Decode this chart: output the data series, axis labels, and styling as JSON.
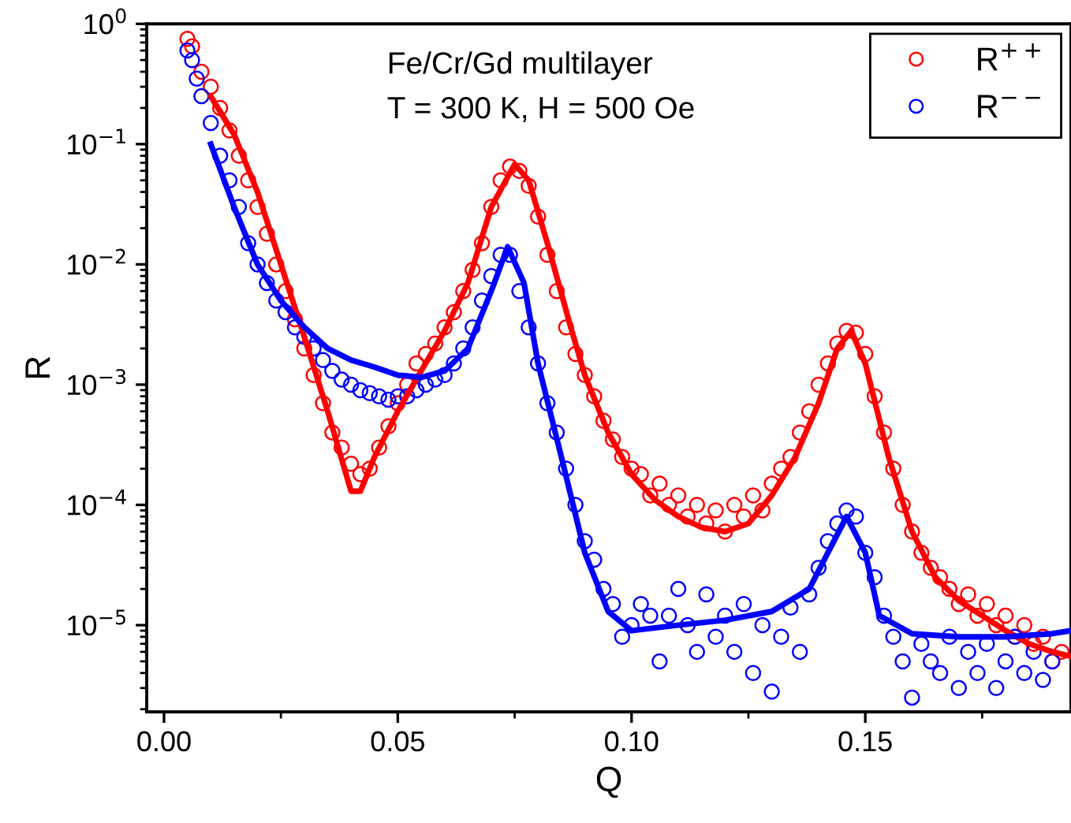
{
  "chart_data": {
    "type": "scatter",
    "xlabel": "Q",
    "ylabel": "R",
    "log": "y",
    "grid": false,
    "legend": "top right",
    "annotations": [
      "Fe/Cr/Gd multilayer",
      "T = 300 K, H = 500 Oe"
    ],
    "xlim": [
      -0.0037,
      0.194
    ],
    "xticks": [
      {
        "value": 0,
        "label": "0.00"
      },
      {
        "value": 0.05,
        "label": "0.05"
      },
      {
        "value": 0.1,
        "label": "0.10"
      },
      {
        "value": 0.15,
        "label": "0.15"
      }
    ],
    "ylim": [
      1.9e-06,
      1
    ],
    "yticks": [
      {
        "value": 1,
        "label": "10$^{0}$"
      },
      {
        "value": 0.1,
        "label": "10$^{−1}$"
      },
      {
        "value": 0.01,
        "label": "10$^{−2}$"
      },
      {
        "value": 0.001,
        "label": "10$^{−3}$"
      },
      {
        "value": 0.0001,
        "label": "10$^{−4}$"
      },
      {
        "value": 1e-05,
        "label": "10$^{−5}$"
      }
    ],
    "series": [
      {
        "name": "R$^{++}$",
        "marker": "circle",
        "color": "#ff0000",
        "x": [
          0.005,
          0.006,
          0.008,
          0.01,
          0.012,
          0.014,
          0.016,
          0.018,
          0.02,
          0.022,
          0.024,
          0.026,
          0.028,
          0.03,
          0.032,
          0.034,
          0.036,
          0.038,
          0.04,
          0.042,
          0.044,
          0.046,
          0.048,
          0.05,
          0.052,
          0.054,
          0.056,
          0.058,
          0.06,
          0.062,
          0.064,
          0.066,
          0.068,
          0.07,
          0.072,
          0.074,
          0.076,
          0.078,
          0.08,
          0.082,
          0.084,
          0.086,
          0.088,
          0.09,
          0.092,
          0.094,
          0.096,
          0.098,
          0.1,
          0.102,
          0.104,
          0.106,
          0.108,
          0.11,
          0.112,
          0.114,
          0.116,
          0.118,
          0.12,
          0.122,
          0.124,
          0.126,
          0.128,
          0.13,
          0.132,
          0.134,
          0.136,
          0.138,
          0.14,
          0.142,
          0.144,
          0.146,
          0.148,
          0.15,
          0.152,
          0.154,
          0.156,
          0.158,
          0.16,
          0.162,
          0.164,
          0.166,
          0.168,
          0.17,
          0.172,
          0.174,
          0.176,
          0.178,
          0.18,
          0.182,
          0.184,
          0.186,
          0.188,
          0.19,
          0.192
        ],
        "values": [
          0.75,
          0.65,
          0.4,
          0.3,
          0.2,
          0.13,
          0.08,
          0.05,
          0.03,
          0.018,
          0.01,
          0.006,
          0.0035,
          0.002,
          0.0012,
          0.0007,
          0.0004,
          0.0003,
          0.00022,
          0.00018,
          0.0002,
          0.0003,
          0.00045,
          0.0007,
          0.001,
          0.0015,
          0.0018,
          0.0022,
          0.003,
          0.004,
          0.006,
          0.009,
          0.015,
          0.03,
          0.05,
          0.065,
          0.06,
          0.045,
          0.025,
          0.012,
          0.006,
          0.003,
          0.0018,
          0.0012,
          0.0008,
          0.0005,
          0.00035,
          0.00025,
          0.0002,
          0.00018,
          0.00012,
          0.00015,
          0.0001,
          0.00012,
          8e-05,
          0.0001,
          7e-05,
          9e-05,
          6e-05,
          0.0001,
          8e-05,
          0.00012,
          9e-05,
          0.00015,
          0.0002,
          0.00025,
          0.0004,
          0.0006,
          0.001,
          0.0015,
          0.0022,
          0.0028,
          0.0027,
          0.0018,
          0.0008,
          0.0004,
          0.0002,
          0.0001,
          6e-05,
          4e-05,
          3e-05,
          2.5e-05,
          2e-05,
          1.5e-05,
          1.8e-05,
          1.2e-05,
          1.5e-05,
          1e-05,
          1.2e-05,
          8e-06,
          1e-05,
          7e-06,
          8e-06,
          5e-06,
          6e-06
        ]
      },
      {
        "name": "R$^{−−}$",
        "marker": "circle",
        "color": "#0000ff",
        "x": [
          0.005,
          0.006,
          0.007,
          0.008,
          0.01,
          0.012,
          0.014,
          0.016,
          0.018,
          0.02,
          0.022,
          0.024,
          0.026,
          0.028,
          0.03,
          0.032,
          0.034,
          0.036,
          0.038,
          0.04,
          0.042,
          0.044,
          0.046,
          0.048,
          0.05,
          0.052,
          0.054,
          0.056,
          0.058,
          0.06,
          0.062,
          0.064,
          0.066,
          0.068,
          0.07,
          0.072,
          0.074,
          0.076,
          0.078,
          0.08,
          0.082,
          0.084,
          0.086,
          0.088,
          0.09,
          0.092,
          0.094,
          0.096,
          0.098,
          0.1,
          0.102,
          0.104,
          0.106,
          0.108,
          0.11,
          0.112,
          0.114,
          0.116,
          0.118,
          0.12,
          0.122,
          0.124,
          0.126,
          0.128,
          0.13,
          0.132,
          0.134,
          0.136,
          0.138,
          0.14,
          0.142,
          0.144,
          0.146,
          0.148,
          0.15,
          0.152,
          0.154,
          0.156,
          0.158,
          0.16,
          0.162,
          0.164,
          0.166,
          0.168,
          0.17,
          0.172,
          0.174,
          0.176,
          0.178,
          0.18,
          0.182,
          0.184,
          0.186,
          0.188,
          0.19
        ],
        "values": [
          0.6,
          0.5,
          0.35,
          0.25,
          0.15,
          0.08,
          0.05,
          0.03,
          0.015,
          0.01,
          0.007,
          0.005,
          0.004,
          0.003,
          0.0025,
          0.002,
          0.0016,
          0.0013,
          0.0011,
          0.001,
          0.0009,
          0.00085,
          0.0008,
          0.00075,
          0.0008,
          0.0008,
          0.0009,
          0.001,
          0.0011,
          0.0012,
          0.0015,
          0.002,
          0.003,
          0.005,
          0.008,
          0.012,
          0.012,
          0.006,
          0.003,
          0.0015,
          0.0007,
          0.0004,
          0.0002,
          0.0001,
          5e-05,
          3.5e-05,
          2e-05,
          1.5e-05,
          8e-06,
          1e-05,
          1.5e-05,
          1.2e-05,
          5e-06,
          1.2e-05,
          2e-05,
          1e-05,
          6e-06,
          1.8e-05,
          8e-06,
          1.2e-05,
          6e-06,
          1.5e-05,
          4e-06,
          1e-05,
          2.8e-06,
          8e-06,
          1.4e-05,
          6e-06,
          1.8e-05,
          3e-05,
          5e-05,
          7e-05,
          9e-05,
          8e-05,
          4e-05,
          2.5e-05,
          1.2e-05,
          8e-06,
          5e-06,
          2.5e-06,
          7e-06,
          5e-06,
          4e-06,
          8e-06,
          3e-06,
          6e-06,
          4e-06,
          7e-06,
          3e-06,
          5e-06,
          8e-06,
          4e-06,
          6e-06,
          3.5e-06,
          5e-06
        ]
      },
      {
        "type": "line",
        "color": "#ff0000",
        "x": [
          0.01,
          0.015,
          0.02,
          0.025,
          0.03,
          0.035,
          0.04,
          0.042,
          0.045,
          0.05,
          0.055,
          0.06,
          0.065,
          0.07,
          0.075,
          0.078,
          0.082,
          0.087,
          0.09,
          0.095,
          0.1,
          0.105,
          0.11,
          0.115,
          0.12,
          0.125,
          0.13,
          0.135,
          0.14,
          0.144,
          0.147,
          0.15,
          0.155,
          0.16,
          0.165,
          0.17,
          0.175,
          0.18,
          0.185,
          0.19,
          0.194
        ],
        "values": [
          0.25,
          0.12,
          0.04,
          0.01,
          0.0025,
          0.0006,
          0.00013,
          0.00013,
          0.00025,
          0.0006,
          0.0013,
          0.0028,
          0.007,
          0.03,
          0.068,
          0.05,
          0.015,
          0.003,
          0.0012,
          0.0004,
          0.00018,
          0.00011,
          8e-05,
          6.5e-05,
          6e-05,
          7e-05,
          0.00012,
          0.00025,
          0.0007,
          0.002,
          0.0028,
          0.0015,
          0.00025,
          6e-05,
          2.5e-05,
          1.6e-05,
          1.2e-05,
          9e-06,
          7e-06,
          6e-06,
          5.5e-06
        ]
      },
      {
        "type": "line",
        "color": "#0000ff",
        "x": [
          0.01,
          0.015,
          0.02,
          0.025,
          0.03,
          0.035,
          0.04,
          0.045,
          0.05,
          0.055,
          0.06,
          0.065,
          0.07,
          0.0735,
          0.077,
          0.08,
          0.085,
          0.09,
          0.095,
          0.1,
          0.11,
          0.12,
          0.13,
          0.138,
          0.142,
          0.146,
          0.15,
          0.153,
          0.16,
          0.17,
          0.18,
          0.19,
          0.194
        ],
        "values": [
          0.1,
          0.03,
          0.01,
          0.005,
          0.003,
          0.002,
          0.0016,
          0.0014,
          0.0012,
          0.00115,
          0.0013,
          0.002,
          0.006,
          0.014,
          0.007,
          0.0015,
          0.00025,
          4e-05,
          1.3e-05,
          9e-06,
          1e-05,
          1.1e-05,
          1.3e-05,
          2e-05,
          4e-05,
          8e-05,
          4e-05,
          1.2e-05,
          8.5e-06,
          8e-06,
          8e-06,
          8.5e-06,
          9e-06
        ]
      }
    ]
  }
}
